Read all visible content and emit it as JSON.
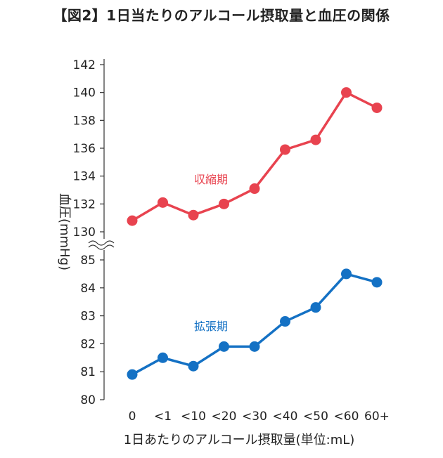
{
  "chart_data": {
    "type": "line",
    "title": "【図2】1日当たりのアルコール摂取量と血圧の関係",
    "xlabel": "1日あたりのアルコール摂取量(単位:mL)",
    "ylabel": "血圧(mmHg)",
    "categories": [
      "0",
      "<1",
      "<10",
      "<20",
      "<30",
      "<40",
      "<50",
      "<60",
      "60+"
    ],
    "axis_break": true,
    "upper_axis": {
      "ticks": [
        130,
        132,
        134,
        136,
        138,
        140,
        142
      ],
      "ylim": [
        130,
        142
      ]
    },
    "lower_axis": {
      "ticks": [
        80,
        81,
        82,
        83,
        84,
        85
      ],
      "ylim": [
        80,
        85
      ]
    },
    "grid": false,
    "series": [
      {
        "name": "収縮期",
        "color": "#e8434f",
        "panel": "upper",
        "values": [
          130.8,
          132.1,
          131.2,
          132.0,
          133.1,
          135.9,
          136.6,
          140.0,
          138.9
        ]
      },
      {
        "name": "拡張期",
        "color": "#1471c4",
        "panel": "lower",
        "values": [
          80.9,
          81.5,
          81.2,
          81.9,
          81.9,
          82.8,
          83.3,
          84.5,
          84.2
        ]
      }
    ]
  }
}
